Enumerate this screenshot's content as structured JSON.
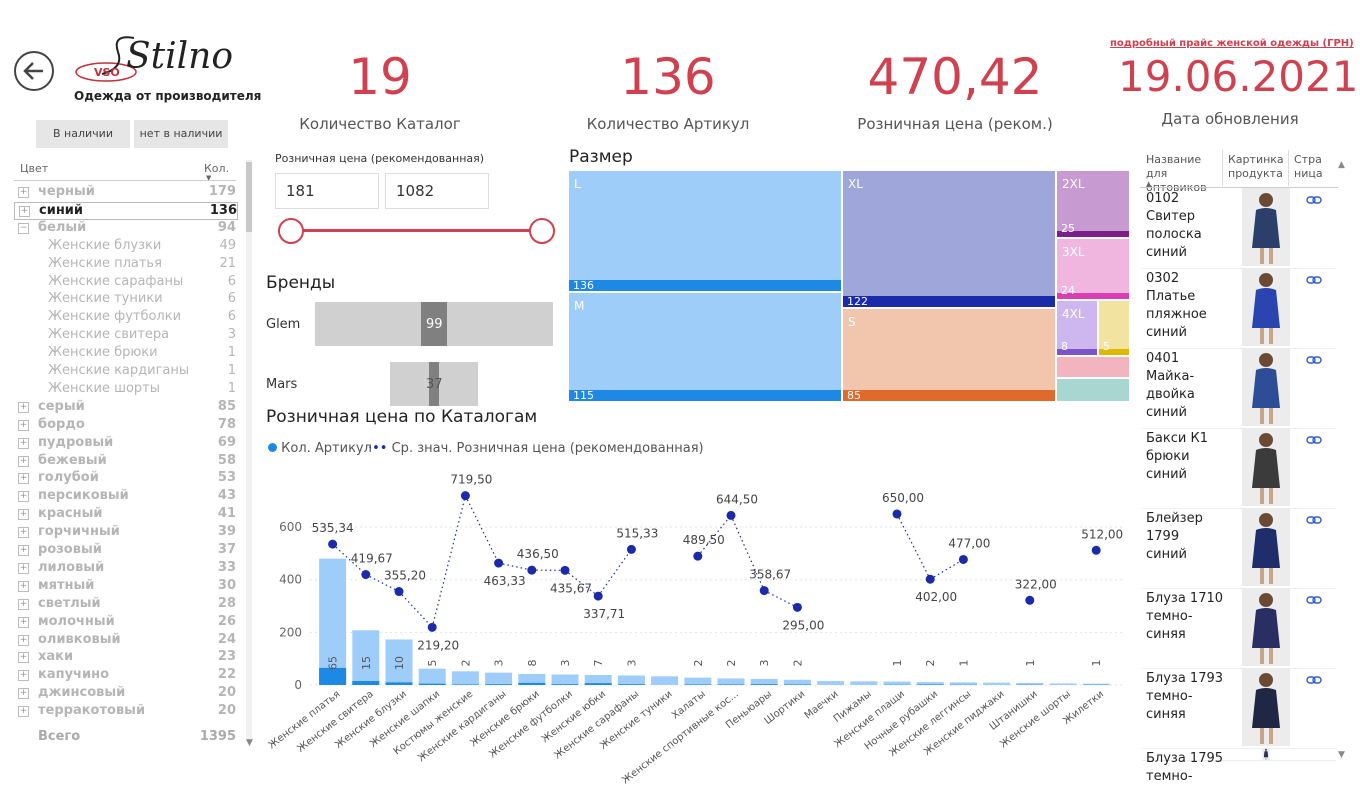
{
  "header": {
    "logo_text": "Stilno",
    "logo_badge": "VSO",
    "logo_tagline": "Одежда от производителя",
    "price_link": "подробный прайс женской одежды (ГРН)",
    "update_date": "19.06.2021",
    "update_label": "Дата обновления"
  },
  "availability": {
    "in_stock": "В наличии",
    "out_of_stock": "нет в наличии"
  },
  "kpis": [
    {
      "value": "19",
      "label": "Количество Каталог"
    },
    {
      "value": "136",
      "label": "Количество Артикул"
    },
    {
      "value": "470,42",
      "label": "Розничная цена (реком.)"
    }
  ],
  "color_slicer": {
    "col_color": "Цвет",
    "col_count": "Кол.",
    "rows": [
      {
        "label": "черный",
        "value": "179",
        "type": "muted",
        "pm": "+"
      },
      {
        "label": "синий",
        "value": "136",
        "type": "selected",
        "pm": "+"
      },
      {
        "label": "белый",
        "value": "94",
        "type": "muted",
        "pm": "−"
      },
      {
        "label": "Женские блузки",
        "value": "49",
        "type": "child"
      },
      {
        "label": "Женские платья",
        "value": "21",
        "type": "child"
      },
      {
        "label": "Женские сарафаны",
        "value": "6",
        "type": "child"
      },
      {
        "label": "Женские туники",
        "value": "6",
        "type": "child"
      },
      {
        "label": "Женские футболки",
        "value": "6",
        "type": "child"
      },
      {
        "label": "Женские свитера",
        "value": "3",
        "type": "child"
      },
      {
        "label": "Женские брюки",
        "value": "1",
        "type": "child"
      },
      {
        "label": "Женские кардиганы",
        "value": "1",
        "type": "child"
      },
      {
        "label": "Женские шорты",
        "value": "1",
        "type": "child"
      },
      {
        "label": "серый",
        "value": "85",
        "type": "muted",
        "pm": "+"
      },
      {
        "label": "бордо",
        "value": "78",
        "type": "muted",
        "pm": "+"
      },
      {
        "label": "пудровый",
        "value": "69",
        "type": "muted",
        "pm": "+"
      },
      {
        "label": "бежевый",
        "value": "58",
        "type": "muted",
        "pm": "+"
      },
      {
        "label": "голубой",
        "value": "53",
        "type": "muted",
        "pm": "+"
      },
      {
        "label": "персиковый",
        "value": "43",
        "type": "muted",
        "pm": "+"
      },
      {
        "label": "красный",
        "value": "41",
        "type": "muted",
        "pm": "+"
      },
      {
        "label": "горчичный",
        "value": "39",
        "type": "muted",
        "pm": "+"
      },
      {
        "label": "розовый",
        "value": "37",
        "type": "muted",
        "pm": "+"
      },
      {
        "label": "лиловый",
        "value": "33",
        "type": "muted",
        "pm": "+"
      },
      {
        "label": "мятный",
        "value": "30",
        "type": "muted",
        "pm": "+"
      },
      {
        "label": "светлый",
        "value": "28",
        "type": "muted",
        "pm": "+"
      },
      {
        "label": "молочный",
        "value": "26",
        "type": "muted",
        "pm": "+"
      },
      {
        "label": "оливковый",
        "value": "24",
        "type": "muted",
        "pm": "+"
      },
      {
        "label": "хаки",
        "value": "23",
        "type": "muted",
        "pm": "+"
      },
      {
        "label": "капучино",
        "value": "22",
        "type": "muted",
        "pm": "+"
      },
      {
        "label": "джинсовый",
        "value": "20",
        "type": "muted",
        "pm": "+"
      },
      {
        "label": "терракотовый",
        "value": "20",
        "type": "muted",
        "pm": "+"
      }
    ],
    "total_label": "Всего",
    "total_value": "1395"
  },
  "price_filter": {
    "label": "Розничная цена (рекомендованная)",
    "min": "181",
    "max": "1082"
  },
  "brands": {
    "title": "Бренды",
    "items": [
      {
        "name": "Glem",
        "value": "99",
        "value_num": 99
      },
      {
        "name": "Mars",
        "value": "37",
        "value_num": 37
      }
    ]
  },
  "size_chart": {
    "title": "Размер",
    "tiles": [
      {
        "label": "L",
        "value": "136",
        "color": "#9fcdfa",
        "bar": "#1e88e5"
      },
      {
        "label": "M",
        "value": "115",
        "color": "#9fcdfa",
        "bar": "#1e88e5"
      },
      {
        "label": "XL",
        "value": "122",
        "color": "#9fa6d9",
        "bar": "#1a2aa8"
      },
      {
        "label": "S",
        "value": "85",
        "color": "#f2c5ad",
        "bar": "#e06a2c"
      },
      {
        "label": "2XL",
        "value": "25",
        "color": "#c79ad1",
        "bar": "#7b1f86"
      },
      {
        "label": "3XL",
        "value": "24",
        "color": "#f1b6df",
        "bar": "#d93fb2"
      },
      {
        "label": "4XL",
        "value": "8",
        "color": "#cdb7ee",
        "bar": "#7c54c9"
      },
      {
        "label": "",
        "value": "5",
        "color": "#f2e3a0",
        "bar": "#e0b800"
      }
    ]
  },
  "chart_data": {
    "type": "bar",
    "title": "Розничная цена по Каталогам",
    "legend": [
      "Кол. Артикул",
      "Ср. знач. Розничная цена (рекомендованная)"
    ],
    "yticks": [
      0,
      200,
      400,
      600
    ],
    "ylim": [
      0,
      760
    ],
    "categories": [
      "Женские платья",
      "Женские свитера",
      "Женские блузки",
      "Женские шапки",
      "Костюмы женские",
      "Женские кардиганы",
      "Женские брюки",
      "Женские футболки",
      "Женские юбки",
      "Женские сарафаны",
      "Женские туники",
      "Халаты",
      "Женские спортивные кос...",
      "Пеньюары",
      "Шортики",
      "Маечки",
      "Пижамы",
      "Женские плащи",
      "Ночные рубашки",
      "Женские леггинсы",
      "Женские пиджаки",
      "Штанишки",
      "Женские шорты",
      "Жилетки"
    ],
    "bar_totals": [
      480,
      208,
      173,
      62,
      52,
      47,
      42,
      40,
      38,
      36,
      33,
      28,
      25,
      23,
      20,
      15,
      14,
      13,
      11,
      10,
      9,
      8,
      6,
      5
    ],
    "bar_selected": [
      65,
      15,
      10,
      5,
      2,
      3,
      8,
      3,
      7,
      3,
      0,
      2,
      2,
      3,
      2,
      0,
      0,
      1,
      2,
      1,
      0,
      1,
      0,
      1
    ],
    "bar_labels": [
      "65",
      "15",
      "10",
      "5",
      "2",
      "3",
      "8",
      "3",
      "7",
      "3",
      "",
      "2",
      "2",
      "3",
      "2",
      "",
      "",
      "1",
      "2",
      "1",
      "",
      "1",
      "",
      "1"
    ],
    "line_values": [
      535.34,
      419.67,
      355.2,
      219.2,
      719.5,
      463.33,
      436.5,
      435.67,
      337.71,
      515.33,
      null,
      489.5,
      644.5,
      358.67,
      295.0,
      null,
      null,
      650.0,
      402.0,
      477.0,
      null,
      322.0,
      null,
      512.0
    ],
    "line_labels": [
      "535,34",
      "419,67",
      "355,20",
      "219,20",
      "719,50",
      "463,33",
      "436,50",
      "435,67",
      "337,71",
      "515,33",
      "",
      "489,50",
      "644,50",
      "358,67",
      "295,00",
      "",
      "",
      "650,00",
      "402,00",
      "477,00",
      "",
      "322,00",
      "",
      "512,00"
    ],
    "colors": {
      "bar_light": "#9fcdfa",
      "bar_dark": "#1e88e5",
      "line": "#1a2aa8"
    }
  },
  "products": {
    "col_name": "Название для оптовиков",
    "col_img": "Картинка продукта",
    "col_link": "Страница",
    "rows": [
      {
        "name": "0102 Свитер полоска синий",
        "dress": "#2c3f6a"
      },
      {
        "name": "0302 Платье пляжное синий",
        "dress": "#2a45b0"
      },
      {
        "name": "0401 Майка-двойка синий",
        "dress": "#2e4d97"
      },
      {
        "name": "Бакси К1 брюки синий",
        "dress": "#3b3b3b"
      },
      {
        "name": "Блейзер 1799 синий",
        "dress": "#1f2d6a"
      },
      {
        "name": "Блуза 1710 темно-синяя",
        "dress": "#2a2f63"
      },
      {
        "name": "Блуза 1793 темно-синяя",
        "dress": "#1f2744"
      },
      {
        "name": "Блуза 1795 темно-",
        "dress": "#263052"
      }
    ]
  }
}
